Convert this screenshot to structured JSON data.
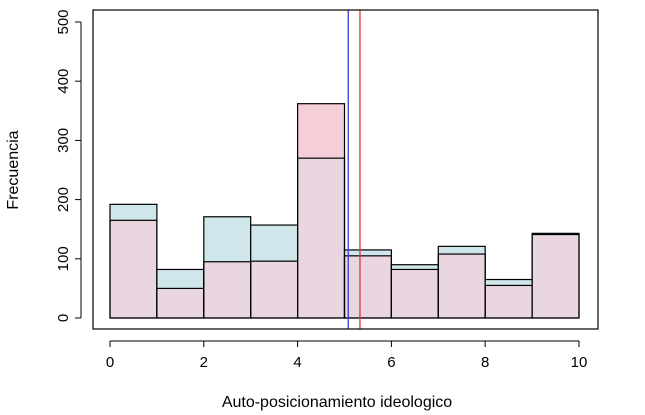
{
  "chart_data": {
    "type": "bar",
    "title": "",
    "xlabel": "Auto-posicionamiento ideologico",
    "ylabel": "Frecuencia",
    "xlim": [
      -0.2,
      10.4
    ],
    "ylim": [
      0,
      500
    ],
    "xticks": [
      0,
      2,
      4,
      6,
      8,
      10
    ],
    "yticks": [
      0,
      100,
      200,
      300,
      400,
      500
    ],
    "bin_edges": [
      0,
      1,
      2,
      3,
      4,
      5,
      6,
      7,
      8,
      9,
      10
    ],
    "series": [
      {
        "color": "#cfe6ea",
        "values": [
          192,
          82,
          171,
          157,
          270,
          115,
          90,
          121,
          65,
          143
        ]
      },
      {
        "color": "#f5cfd7",
        "values": [
          165,
          50,
          95,
          96,
          362,
          105,
          82,
          108,
          55,
          141
        ]
      }
    ],
    "overlap_color": "#e9d6e0",
    "vertical_lines": [
      {
        "x": 5.08,
        "color": "#3a3ad6"
      },
      {
        "x": 5.33,
        "color": "#d63a3a"
      }
    ]
  }
}
